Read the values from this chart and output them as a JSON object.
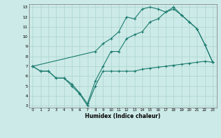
{
  "xlabel": "Humidex (Indice chaleur)",
  "bg_color": "#cceae7",
  "grid_color": "#aad4d0",
  "line_color": "#1a7a6e",
  "xlim": [
    -0.5,
    23.5
  ],
  "ylim": [
    2.8,
    13.3
  ],
  "xticks": [
    0,
    1,
    2,
    3,
    4,
    5,
    6,
    7,
    8,
    9,
    10,
    11,
    12,
    13,
    14,
    15,
    16,
    17,
    18,
    19,
    20,
    21,
    22,
    23
  ],
  "yticks": [
    3,
    4,
    5,
    6,
    7,
    8,
    9,
    10,
    11,
    12,
    13
  ],
  "line1_x": [
    0,
    1,
    2,
    3,
    4,
    5,
    6,
    7,
    8,
    9,
    10,
    11,
    12,
    13,
    14,
    15,
    16,
    17,
    18,
    19,
    20,
    21,
    22,
    23
  ],
  "line1_y": [
    7.0,
    6.5,
    6.5,
    5.8,
    5.8,
    5.0,
    4.2,
    3.0,
    5.0,
    6.5,
    6.5,
    6.5,
    6.5,
    6.5,
    6.7,
    6.8,
    6.9,
    7.0,
    7.1,
    7.2,
    7.3,
    7.4,
    7.5,
    7.4
  ],
  "line2_x": [
    0,
    1,
    2,
    3,
    4,
    5,
    6,
    7,
    8,
    9,
    10,
    11,
    12,
    13,
    14,
    15,
    16,
    17,
    18,
    19,
    20,
    21,
    22,
    23
  ],
  "line2_y": [
    7.0,
    6.5,
    6.5,
    5.8,
    5.8,
    5.2,
    4.3,
    3.2,
    5.5,
    7.0,
    8.5,
    8.5,
    9.8,
    10.2,
    10.5,
    11.5,
    11.8,
    12.5,
    12.8,
    12.2,
    11.5,
    10.8,
    9.2,
    7.4
  ],
  "line3_x": [
    0,
    8,
    9,
    10,
    11,
    12,
    13,
    14,
    15,
    16,
    17,
    18,
    19,
    20,
    21,
    22,
    23
  ],
  "line3_y": [
    7.0,
    8.5,
    9.3,
    9.8,
    10.5,
    12.0,
    11.8,
    12.8,
    13.0,
    12.8,
    12.5,
    13.0,
    12.2,
    11.5,
    10.8,
    9.2,
    7.4
  ]
}
